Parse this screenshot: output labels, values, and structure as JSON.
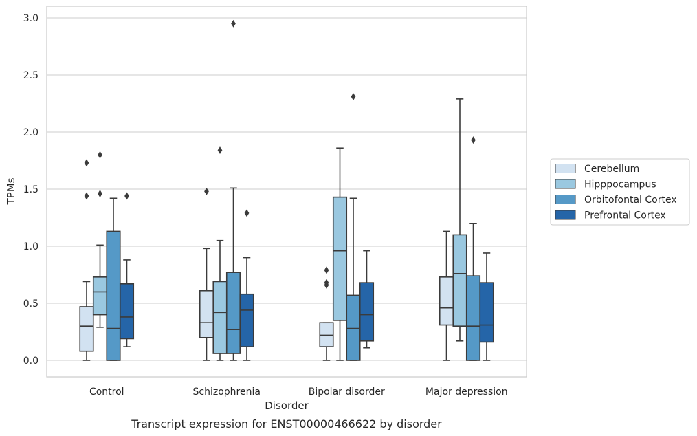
{
  "chart_data": {
    "type": "box",
    "caption": "Transcript expression for ENST00000466622 by disorder",
    "xlabel": "Disorder",
    "ylabel": "TPMs",
    "ylim": [
      -0.14,
      3.1
    ],
    "yticks": [
      0.0,
      0.5,
      1.0,
      1.5,
      2.0,
      2.5,
      3.0
    ],
    "ytick_labels": [
      "0.0",
      "0.5",
      "1.0",
      "1.5",
      "2.0",
      "2.5",
      "3.0"
    ],
    "grid": "horizontal",
    "legend_position": "right",
    "categories": [
      "Control",
      "Schizophrenia",
      "Bipolar disorder",
      "Major depression"
    ],
    "series": [
      {
        "name": "Cerebellum",
        "color": "#d2e2f1",
        "boxes": [
          {
            "whislo": 0.0,
            "q1": 0.08,
            "med": 0.3,
            "q3": 0.47,
            "whishi": 0.69,
            "fliers": [
              1.44,
              1.73
            ]
          },
          {
            "whislo": 0.0,
            "q1": 0.2,
            "med": 0.33,
            "q3": 0.61,
            "whishi": 0.98,
            "fliers": [
              1.48
            ]
          },
          {
            "whislo": 0.0,
            "q1": 0.12,
            "med": 0.22,
            "q3": 0.33,
            "whishi": 0.33,
            "fliers": [
              0.66,
              0.68,
              0.79
            ]
          },
          {
            "whislo": 0.0,
            "q1": 0.31,
            "med": 0.46,
            "q3": 0.73,
            "whishi": 1.13,
            "fliers": []
          }
        ]
      },
      {
        "name": "Hipppocampus",
        "color": "#9ac8e0",
        "boxes": [
          {
            "whislo": 0.29,
            "q1": 0.4,
            "med": 0.6,
            "q3": 0.73,
            "whishi": 1.01,
            "fliers": [
              1.46,
              1.8
            ]
          },
          {
            "whislo": 0.0,
            "q1": 0.06,
            "med": 0.42,
            "q3": 0.69,
            "whishi": 1.05,
            "fliers": [
              1.84
            ]
          },
          {
            "whislo": 0.0,
            "q1": 0.35,
            "med": 0.96,
            "q3": 1.43,
            "whishi": 1.86,
            "fliers": []
          },
          {
            "whislo": 0.17,
            "q1": 0.3,
            "med": 0.76,
            "q3": 1.1,
            "whishi": 2.29,
            "fliers": []
          }
        ]
      },
      {
        "name": "Orbitofontal Cortex",
        "color": "#5599c7",
        "boxes": [
          {
            "whislo": 0.0,
            "q1": 0.0,
            "med": 0.28,
            "q3": 1.13,
            "whishi": 1.42,
            "fliers": []
          },
          {
            "whislo": 0.0,
            "q1": 0.06,
            "med": 0.27,
            "q3": 0.77,
            "whishi": 1.51,
            "fliers": [
              2.95
            ]
          },
          {
            "whislo": 0.0,
            "q1": 0.0,
            "med": 0.28,
            "q3": 0.57,
            "whishi": 1.42,
            "fliers": [
              2.31
            ]
          },
          {
            "whislo": 0.0,
            "q1": 0.0,
            "med": 0.3,
            "q3": 0.74,
            "whishi": 1.2,
            "fliers": [
              1.93
            ]
          }
        ]
      },
      {
        "name": "Prefrontal Cortex",
        "color": "#2565a8",
        "boxes": [
          {
            "whislo": 0.12,
            "q1": 0.19,
            "med": 0.38,
            "q3": 0.67,
            "whishi": 0.88,
            "fliers": [
              1.44
            ]
          },
          {
            "whislo": 0.0,
            "q1": 0.12,
            "med": 0.44,
            "q3": 0.58,
            "whishi": 0.9,
            "fliers": [
              1.29
            ]
          },
          {
            "whislo": 0.11,
            "q1": 0.17,
            "med": 0.4,
            "q3": 0.68,
            "whishi": 0.96,
            "fliers": []
          },
          {
            "whislo": 0.0,
            "q1": 0.16,
            "med": 0.31,
            "q3": 0.68,
            "whishi": 0.94,
            "fliers": []
          }
        ]
      }
    ]
  }
}
